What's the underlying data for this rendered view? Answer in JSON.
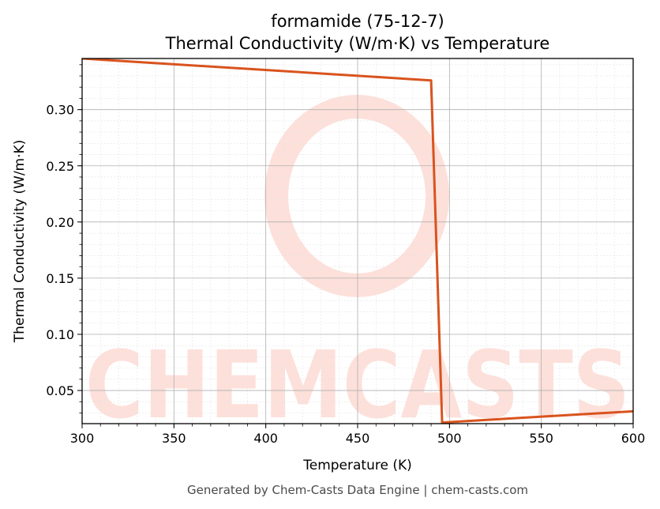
{
  "chart_data": {
    "type": "line",
    "title": "formamide (75-12-7)",
    "subtitle": "Thermal Conductivity (W/m·K) vs Temperature",
    "xlabel": "Temperature (K)",
    "ylabel": "Thermal Conductivity (W/m·K)",
    "xlim": [
      300,
      600
    ],
    "ylim": [
      0.0205,
      0.3455
    ],
    "xticks": [
      300,
      350,
      400,
      450,
      500,
      550,
      600
    ],
    "yticks": [
      0.05,
      0.1,
      0.15,
      0.2,
      0.25,
      0.3
    ],
    "grid": true,
    "legend": "none",
    "series": [
      {
        "color": "#d9531e",
        "x": [
          300,
          490,
          496,
          600
        ],
        "y": [
          0.3455,
          0.326,
          0.0215,
          0.0315
        ]
      }
    ],
    "watermark": "CHEMCASTS"
  },
  "footer": "Generated by Chem-Casts Data Engine | chem-casts.com"
}
